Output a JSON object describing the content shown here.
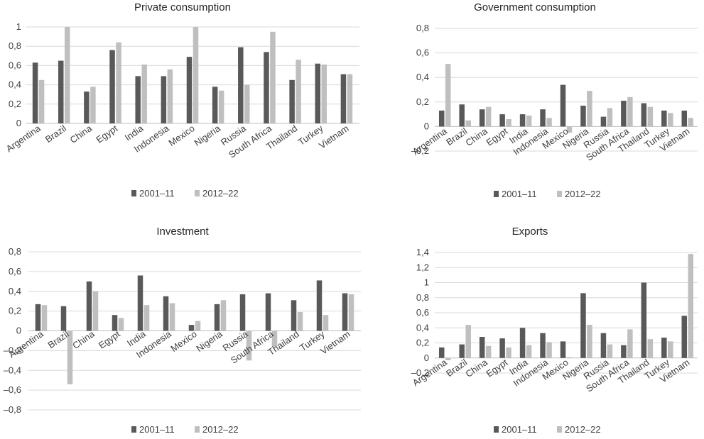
{
  "colors": {
    "s2001": "#595959",
    "s2012": "#bfbfbf"
  },
  "charts": [
    {
      "chart_data": {
        "type": "bar",
        "title": "Private consumption",
        "categories": [
          "Argentina",
          "Brazil",
          "China",
          "Egypt",
          "India",
          "Indonesia",
          "Mexico",
          "Nigeria",
          "Russia",
          "South Africa",
          "Thailand",
          "Turkey",
          "Vietnam"
        ],
        "series": [
          {
            "name": "2001–11",
            "values": [
              0.63,
              0.65,
              0.33,
              0.76,
              0.49,
              0.49,
              0.69,
              0.38,
              0.79,
              0.74,
              0.45,
              0.62,
              0.51
            ]
          },
          {
            "name": "2012–22",
            "values": [
              0.45,
              1.0,
              0.38,
              0.84,
              0.61,
              0.56,
              1.0,
              0.34,
              0.4,
              0.95,
              0.66,
              0.61,
              0.51
            ]
          }
        ],
        "ylim": [
          0,
          1
        ],
        "yticks": [
          0,
          0.2,
          0.4,
          0.6,
          0.8,
          1
        ],
        "ytick_labels": [
          "0",
          "0,2",
          "0,4",
          "0,6",
          "0,8",
          "1"
        ],
        "legend": "bottom"
      }
    },
    {
      "chart_data": {
        "type": "bar",
        "title": "Government consumption",
        "categories": [
          "Argentina",
          "Brazil",
          "China",
          "Egypt",
          "India",
          "Indonesia",
          "Mexico",
          "Nigeria",
          "Russia",
          "South Africa",
          "Thailand",
          "Turkey",
          "Vietnam"
        ],
        "series": [
          {
            "name": "2001–11",
            "values": [
              0.13,
              0.18,
              0.14,
              0.1,
              0.1,
              0.14,
              0.34,
              0.17,
              0.08,
              0.21,
              0.19,
              0.13,
              0.13
            ]
          },
          {
            "name": "2012–22",
            "values": [
              0.51,
              0.05,
              0.16,
              0.06,
              0.09,
              0.07,
              -0.05,
              0.29,
              0.15,
              0.24,
              0.16,
              0.11,
              0.07
            ]
          }
        ],
        "ylim": [
          -0.2,
          0.8
        ],
        "yticks": [
          -0.2,
          0,
          0.2,
          0.4,
          0.6,
          0.8
        ],
        "ytick_labels": [
          "–0,2",
          "0",
          "0,2",
          "0,4",
          "0,6",
          "0,8"
        ],
        "legend": "bottom"
      }
    },
    {
      "chart_data": {
        "type": "bar",
        "title": "Investment",
        "categories": [
          "Argentina",
          "Brazil",
          "China",
          "Egypt",
          "India",
          "Indonesia",
          "Mexico",
          "Nigeria",
          "Russia",
          "South Africa",
          "Thailand",
          "Turkey",
          "Vietnam"
        ],
        "series": [
          {
            "name": "2001–11",
            "values": [
              0.27,
              0.25,
              0.5,
              0.16,
              0.56,
              0.35,
              0.06,
              0.27,
              0.37,
              0.38,
              0.31,
              0.51,
              0.38
            ]
          },
          {
            "name": "2012–22",
            "values": [
              0.26,
              -0.54,
              0.4,
              0.13,
              0.26,
              0.28,
              0.1,
              0.31,
              -0.3,
              -0.16,
              0.19,
              0.16,
              0.37
            ]
          }
        ],
        "ylim": [
          -0.8,
          0.8
        ],
        "yticks": [
          -0.8,
          -0.6,
          -0.4,
          -0.2,
          0,
          0.2,
          0.4,
          0.6,
          0.8
        ],
        "ytick_labels": [
          "–0,8",
          "–0,6",
          "–0,4",
          "–0,2",
          "0",
          "0,2",
          "0,4",
          "0,6",
          "0,8"
        ],
        "legend": "bottom"
      }
    },
    {
      "chart_data": {
        "type": "bar",
        "title": "Exports",
        "categories": [
          "Argentina",
          "Brazil",
          "China",
          "Egypt",
          "India",
          "Indonesia",
          "Mexico",
          "Nigeria",
          "Russia",
          "South Africa",
          "Thailand",
          "Turkey",
          "Vietnam"
        ],
        "series": [
          {
            "name": "2001–11",
            "values": [
              0.14,
              0.18,
              0.28,
              0.26,
              0.4,
              0.33,
              0.22,
              0.86,
              0.33,
              0.17,
              1.0,
              0.27,
              0.56
            ]
          },
          {
            "name": "2012–22",
            "values": [
              -0.03,
              0.44,
              0.16,
              0.14,
              0.17,
              0.21,
              0.01,
              0.44,
              0.18,
              0.38,
              0.25,
              0.22,
              1.38
            ]
          }
        ],
        "ylim": [
          -0.2,
          1.4
        ],
        "yticks": [
          -0.2,
          0,
          0.2,
          0.4,
          0.6,
          0.8,
          1,
          1.2,
          1.4
        ],
        "ytick_labels": [
          "–0,2",
          "0",
          "0,2",
          "0,4",
          "0,6",
          "0,8",
          "1",
          "1,2",
          "1,4"
        ],
        "legend": "bottom"
      }
    }
  ]
}
